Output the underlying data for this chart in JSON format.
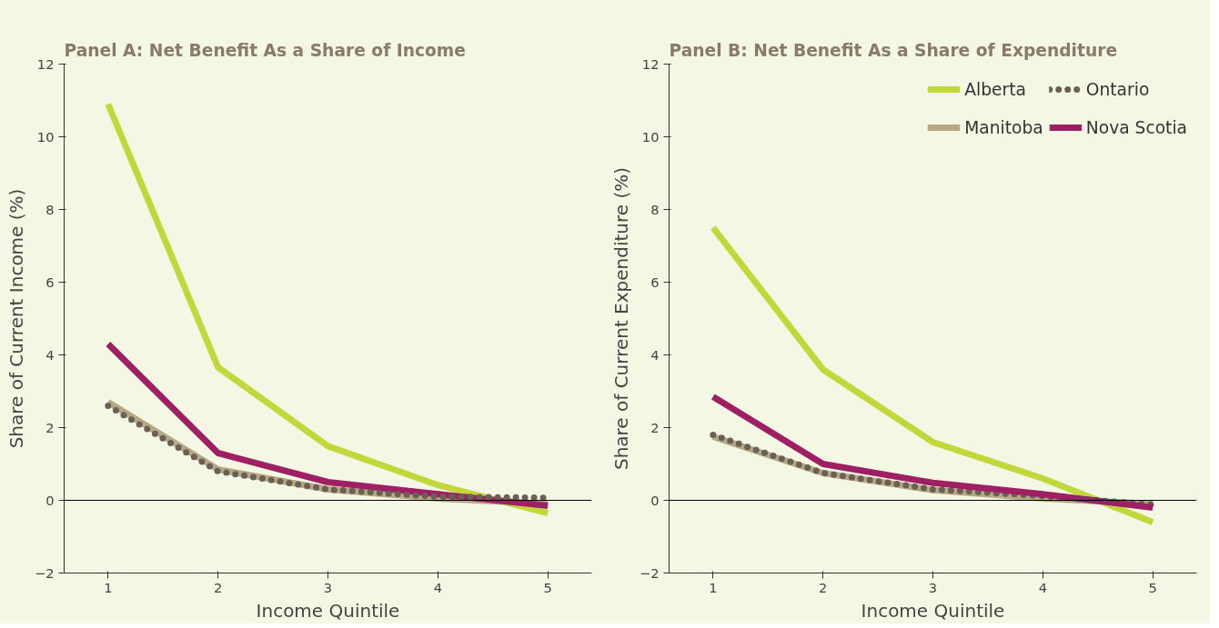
{
  "chart_data": [
    {
      "type": "line",
      "title": "Panel A: Net Benefit As a Share of Income",
      "xlabel": "Income Quintile",
      "ylabel": "Share of Current Income (%)",
      "x": [
        1,
        2,
        3,
        4,
        5
      ],
      "xlim": [
        0.6,
        5.4
      ],
      "xticks": [
        1,
        2,
        3,
        4,
        5
      ],
      "ylim": [
        -2,
        12
      ],
      "yticks": [
        -2,
        0,
        2,
        4,
        6,
        8,
        10,
        12
      ],
      "grid": false,
      "marker": "none",
      "ref_lines": [
        {
          "axis": "y",
          "value": 0,
          "label": null,
          "color": "#000000"
        }
      ],
      "series": [
        {
          "color": "#c2d83a",
          "values": [
            10.9,
            3.66,
            1.49,
            0.42,
            -0.35
          ]
        },
        {
          "color": "#b5a882",
          "values": [
            2.7,
            0.85,
            0.3,
            0.05,
            -0.1
          ]
        },
        {
          "color": "#9e1f63",
          "values": [
            4.3,
            1.3,
            0.5,
            0.17,
            -0.15
          ]
        },
        {
          "color": "#6b6055",
          "line_style": "dotted",
          "values": [
            2.6,
            0.8,
            0.3,
            0.1,
            0.07
          ]
        }
      ]
    },
    {
      "type": "line",
      "title": "Panel B: Net Benefit As a Share of Expenditure",
      "xlabel": "Income Quintile",
      "ylabel": "Share of Current Expenditure (%)",
      "x": [
        1,
        2,
        3,
        4,
        5
      ],
      "xlim": [
        0.6,
        5.4
      ],
      "xticks": [
        1,
        2,
        3,
        4,
        5
      ],
      "ylim": [
        -2,
        12
      ],
      "yticks": [
        -2,
        0,
        2,
        4,
        6,
        8,
        10,
        12
      ],
      "grid": false,
      "legend": "top right",
      "marker": "none",
      "ref_lines": [
        {
          "axis": "y",
          "value": 0,
          "label": null,
          "color": "#000000"
        }
      ],
      "series": [
        {
          "name": "Alberta",
          "color": "#c2d83a",
          "values": [
            7.5,
            3.6,
            1.6,
            0.6,
            -0.6
          ]
        },
        {
          "name": "Manitoba",
          "color": "#b5a882",
          "values": [
            1.75,
            0.75,
            0.28,
            0.05,
            -0.1
          ]
        },
        {
          "name": "Ontario",
          "color": "#6b6055",
          "line_style": "dotted",
          "values": [
            1.8,
            0.75,
            0.3,
            0.12,
            -0.12
          ]
        },
        {
          "name": "Nova Scotia",
          "color": "#9e1f63",
          "values": [
            2.85,
            1.0,
            0.48,
            0.17,
            -0.2
          ]
        }
      ]
    }
  ]
}
